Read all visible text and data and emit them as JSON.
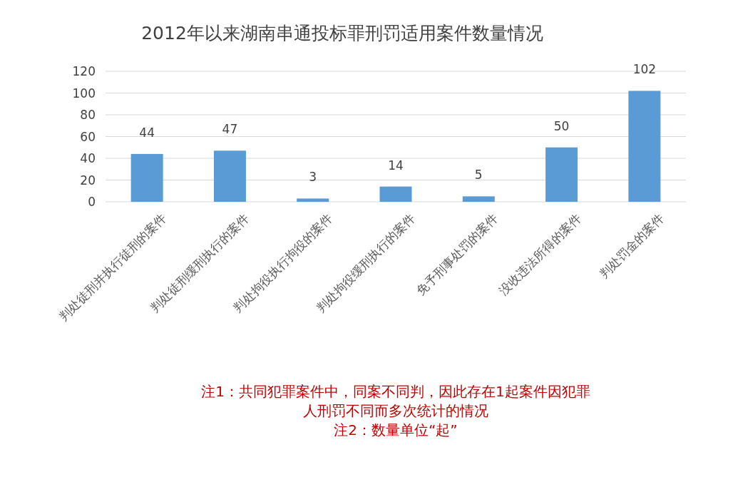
{
  "chart_data": {
    "type": "bar",
    "title": "2012年以来湖南串通投标罪刑罚适用案件数量情况",
    "categories": [
      "判处徒刑并执行徒刑的案件",
      "判处徒刑缓刑执行的案件",
      "判处拘役执行拘役的案件",
      "判处拘役缓刑执行的案件",
      "免予刑事处罚的案件",
      "没收违法所得的案件",
      "判处罚金的案件"
    ],
    "values": [
      44,
      47,
      3,
      14,
      5,
      50,
      102
    ],
    "color": "#5b9bd5",
    "ylim": [
      0,
      120
    ],
    "yticks": [
      0,
      20,
      40,
      60,
      80,
      100,
      120
    ],
    "grid": "y",
    "data_labels": true,
    "annotations": [
      "注1：共同犯罪案件中，同案不同判，因此存在1起案件因犯罪人刑罚不同而多次统计的情况",
      "注2：数量单位“起”"
    ]
  }
}
